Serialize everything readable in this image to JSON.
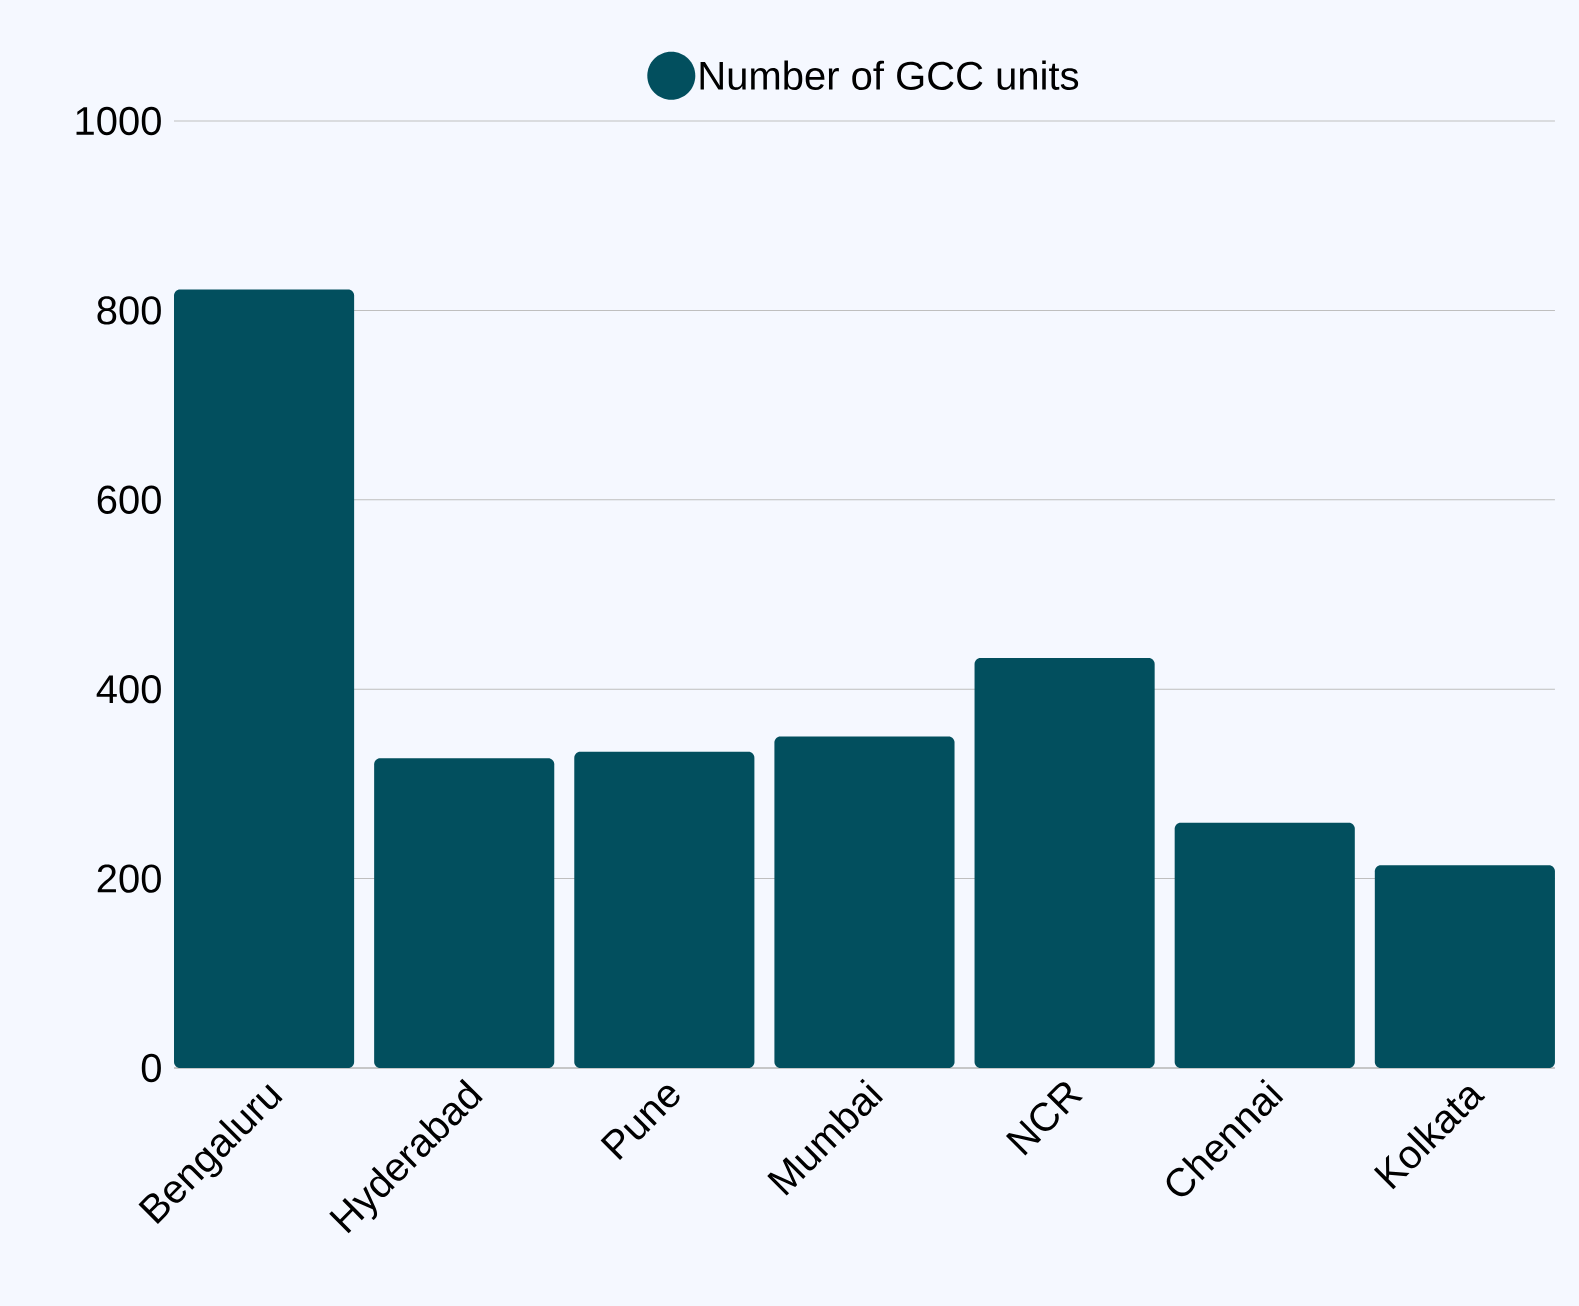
{
  "chart_data": {
    "type": "bar",
    "categories": [
      "Bengaluru",
      "Hyderabad",
      "Pune",
      "Mumbai",
      "NCR",
      "Chennai",
      "Kolkata"
    ],
    "series": [
      {
        "name": "Number of GCC units",
        "color": "#024f5e",
        "values": [
          822,
          327,
          334,
          350,
          433,
          259,
          214
        ]
      }
    ],
    "ylim": [
      0,
      1000
    ],
    "yticks": [
      0,
      200,
      400,
      600,
      800,
      1000
    ],
    "grid": "y",
    "legend": "top"
  }
}
